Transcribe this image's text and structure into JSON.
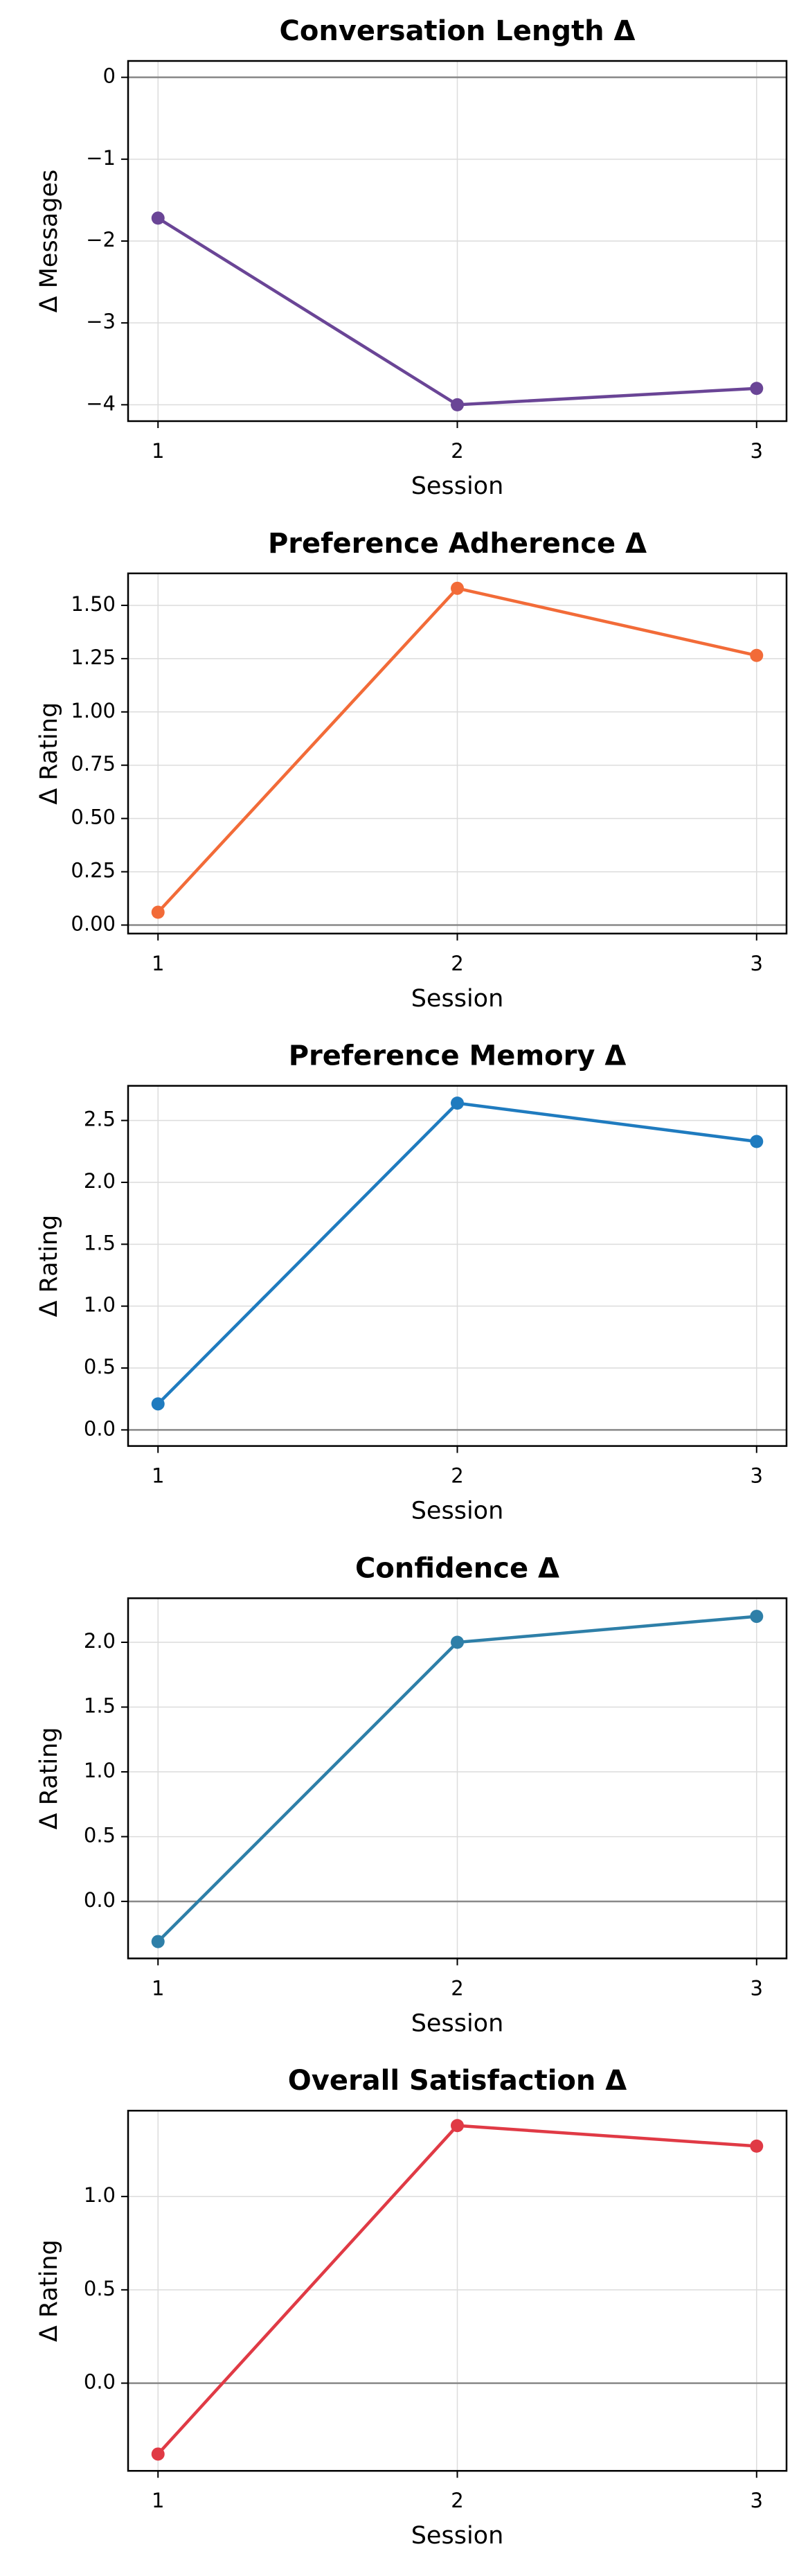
{
  "chart_data": [
    {
      "type": "line",
      "title": "Conversation Length Δ",
      "xlabel": "Session",
      "ylabel": "Δ Messages",
      "x": [
        1,
        2,
        3
      ],
      "values": [
        -1.72,
        -4.0,
        -3.8
      ],
      "color": "#6a4596",
      "xlim": [
        0.9,
        3.1
      ],
      "xticks": [
        1,
        2,
        3
      ],
      "ylim": [
        -4.2,
        0.2
      ],
      "yticks": [
        0,
        {
          "value": -1,
          "label": "−1"
        },
        {
          "value": -2,
          "label": "−2"
        },
        {
          "value": -3,
          "label": "−3"
        },
        {
          "value": -4,
          "label": "−4"
        }
      ],
      "reference_line": 0,
      "grid": true
    },
    {
      "type": "line",
      "title": "Preference Adherence Δ",
      "xlabel": "Session",
      "ylabel": "Δ Rating",
      "x": [
        1,
        2,
        3
      ],
      "values": [
        0.06,
        1.58,
        1.265
      ],
      "color": "#f26b38",
      "xlim": [
        0.9,
        3.1
      ],
      "xticks": [
        1,
        2,
        3
      ],
      "ylim": [
        -0.04,
        1.65
      ],
      "yticks": [
        {
          "value": 0,
          "label": "0.00"
        },
        0.25,
        {
          "value": 0.5,
          "label": "0.50"
        },
        0.75,
        {
          "value": 1,
          "label": "1.00"
        },
        1.25,
        {
          "value": 1.5,
          "label": "1.50"
        }
      ],
      "reference_line": 0,
      "grid": true
    },
    {
      "type": "line",
      "title": "Preference Memory Δ",
      "xlabel": "Session",
      "ylabel": "Δ Rating",
      "x": [
        1,
        2,
        3
      ],
      "values": [
        0.21,
        2.64,
        2.33
      ],
      "color": "#1f7bbf",
      "xlim": [
        0.9,
        3.1
      ],
      "xticks": [
        1,
        2,
        3
      ],
      "ylim": [
        -0.13,
        2.78
      ],
      "yticks": [
        {
          "value": 0,
          "label": "0.0"
        },
        0.5,
        {
          "value": 1,
          "label": "1.0"
        },
        1.5,
        {
          "value": 2,
          "label": "2.0"
        },
        2.5
      ],
      "reference_line": 0,
      "grid": true
    },
    {
      "type": "line",
      "title": "Confidence Δ",
      "xlabel": "Session",
      "ylabel": "Δ Rating",
      "x": [
        1,
        2,
        3
      ],
      "values": [
        -0.31,
        2.0,
        2.2
      ],
      "color": "#2e7fa8",
      "xlim": [
        0.9,
        3.1
      ],
      "xticks": [
        1,
        2,
        3
      ],
      "ylim": [
        -0.44,
        2.34
      ],
      "yticks": [
        {
          "value": 0,
          "label": "0.0"
        },
        0.5,
        {
          "value": 1,
          "label": "1.0"
        },
        1.5,
        {
          "value": 2,
          "label": "2.0"
        }
      ],
      "reference_line": 0,
      "grid": true
    },
    {
      "type": "line",
      "title": "Overall Satisfaction Δ",
      "xlabel": "Session",
      "ylabel": "Δ Rating",
      "x": [
        1,
        2,
        3
      ],
      "values": [
        -0.38,
        1.38,
        1.27
      ],
      "color": "#e03a45",
      "xlim": [
        0.9,
        3.1
      ],
      "xticks": [
        1,
        2,
        3
      ],
      "ylim": [
        -0.47,
        1.46
      ],
      "yticks": [
        {
          "value": 0,
          "label": "0.0"
        },
        0.5,
        {
          "value": 1,
          "label": "1.0"
        }
      ],
      "reference_line": 0,
      "grid": true
    }
  ]
}
